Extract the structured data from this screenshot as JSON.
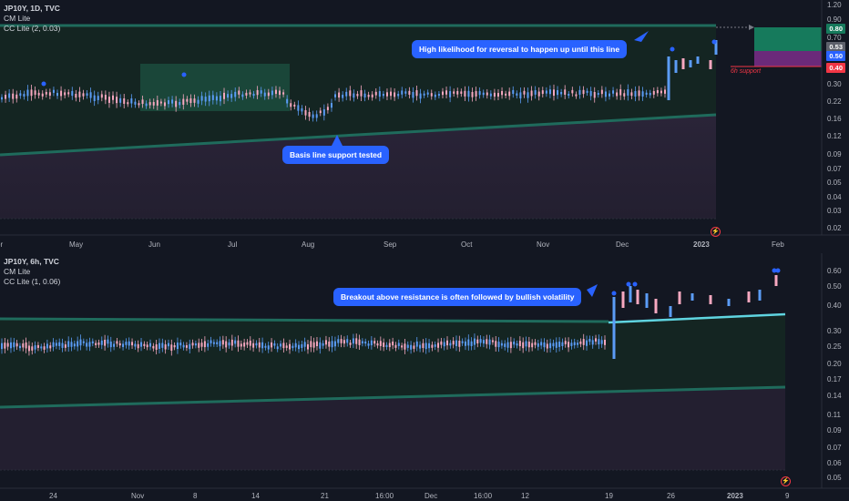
{
  "top_chart": {
    "legend": {
      "symbol": "JP10Y, 1D, TVC",
      "ind1": "CM Lite",
      "ind2": "CC Lite (2, 0.03)"
    },
    "price_axis": [
      "1.20",
      "0.90",
      "0.80",
      "0.70",
      "0.53",
      "0.50",
      "0.40",
      "0.30",
      "0.22",
      "0.16",
      "0.12",
      "0.09",
      "0.07",
      "0.05",
      "0.04",
      "0.03",
      "0.02"
    ],
    "time_axis": [
      "pr",
      "May",
      "Jun",
      "Jul",
      "Aug",
      "Sep",
      "Oct",
      "Nov",
      "Dec",
      "2023",
      "Feb"
    ],
    "price_tags": {
      "tag_080": "0.80",
      "tag_053": "0.53",
      "tag_050": "0.50",
      "tag_040": "0.40"
    },
    "support_label": "6h support",
    "callout_reversal": "High likelihood for reversal to happen up until this line",
    "callout_basis": "Basis line support tested",
    "colors": {
      "up": "#5b9cf6",
      "down": "#f7a8c0",
      "resistance": "#1e5e52",
      "accent": "#2962ff",
      "red_tag": "#f23645"
    }
  },
  "bottom_chart": {
    "legend": {
      "symbol": "JP10Y, 6h, TVC",
      "ind1": "CM Lite",
      "ind2": "CC Lite (1, 0.06)"
    },
    "price_axis": [
      "0.60",
      "0.50",
      "0.40",
      "0.30",
      "0.25",
      "0.20",
      "0.17",
      "0.14",
      "0.11",
      "0.09",
      "0.07",
      "0.06",
      "0.05"
    ],
    "time_axis": [
      "24",
      "Nov",
      "8",
      "14",
      "21",
      "16:00",
      "Dec",
      "16:00",
      "12",
      "19",
      "26",
      "2023",
      "9"
    ],
    "callout_breakout": "Breakout above resistance is often followed by bullish volatility"
  }
}
